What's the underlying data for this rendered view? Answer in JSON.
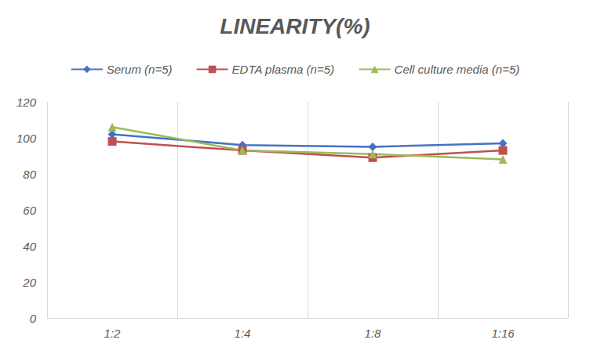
{
  "chart_data": {
    "type": "line",
    "title": "LINEARITY(%)",
    "categories": [
      "1:2",
      "1:4",
      "1:8",
      "1:16"
    ],
    "series": [
      {
        "name": "Serum (n=5)",
        "color": "#4472c4",
        "marker": "diamond",
        "values": [
          102,
          96,
          95,
          97
        ]
      },
      {
        "name": "EDTA plasma (n=5)",
        "color": "#c0504d",
        "marker": "square",
        "values": [
          98,
          93,
          89,
          93
        ]
      },
      {
        "name": "Cell culture media (n=5)",
        "color": "#9bbb59",
        "marker": "triangle",
        "values": [
          106,
          93,
          91,
          88
        ]
      }
    ],
    "ylim": [
      0,
      120
    ],
    "yticks": [
      0,
      20,
      40,
      60,
      80,
      100,
      120
    ],
    "grid": true,
    "legend": "top"
  }
}
